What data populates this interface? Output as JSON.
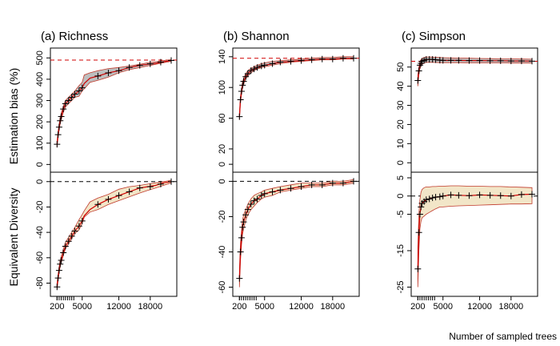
{
  "chart_data": {
    "type": "line",
    "ylabel_top": "Estimation bias (%)",
    "ylabel_bottom": "Equivalent Diversity",
    "xlabel": "Number of sampled trees",
    "x_ticks": [
      200,
      5000,
      12000,
      18000
    ],
    "colors": {
      "band_top": "#bebebe",
      "band_bottom": "#f2e6c8",
      "band_edge": "#c0392b",
      "mean_line": "#d00000",
      "reference_line": "#d00000",
      "zero_line": "#000000",
      "markers": "#000000"
    },
    "panels": [
      {
        "title": "(a) Richness",
        "xlim": [
          0,
          22000
        ],
        "top": {
          "ylim": [
            -10,
            520
          ],
          "ticks": [
            0,
            100,
            200,
            300,
            400,
            500
          ],
          "reference": 490,
          "x": [
            200,
            400,
            600,
            800,
            1000,
            1400,
            1800,
            2400,
            3000,
            3600,
            4400,
            5000,
            5400,
            6500,
            8000,
            10000,
            12000,
            14000,
            16000,
            17500,
            19000,
            20500,
            22000
          ],
          "mean": [
            95,
            140,
            175,
            205,
            225,
            260,
            285,
            300,
            315,
            330,
            345,
            360,
            380,
            405,
            415,
            430,
            440,
            455,
            465,
            470,
            475,
            482,
            488
          ],
          "lower": [
            80,
            125,
            160,
            190,
            210,
            245,
            270,
            285,
            300,
            315,
            320,
            345,
            355,
            385,
            395,
            410,
            430,
            445,
            455,
            462,
            470,
            477,
            484
          ],
          "upper": [
            110,
            155,
            190,
            220,
            240,
            275,
            300,
            315,
            330,
            345,
            370,
            385,
            420,
            430,
            440,
            450,
            455,
            462,
            470,
            477,
            482,
            488,
            492
          ],
          "markers_x": [
            200,
            400,
            600,
            800,
            1000,
            1400,
            1800,
            2400,
            3000,
            3600,
            4400,
            5000,
            8000,
            10000,
            12000,
            14000,
            16000,
            18000,
            20000,
            22000
          ],
          "markers_y": [
            95,
            140,
            175,
            205,
            225,
            260,
            285,
            300,
            315,
            330,
            345,
            360,
            415,
            430,
            440,
            455,
            465,
            472,
            480,
            488
          ]
        },
        "bottom": {
          "ylim": [
            -86,
            3
          ],
          "ticks": [
            -80,
            -60,
            -40,
            -20,
            0
          ],
          "reference": 0,
          "x": [
            200,
            400,
            600,
            800,
            1000,
            1400,
            1800,
            2400,
            3000,
            3600,
            4400,
            5000,
            5400,
            6500,
            8000,
            10000,
            12000,
            14000,
            16000,
            17500,
            19000,
            20500,
            22000
          ],
          "mean": [
            -83,
            -76,
            -70,
            -65,
            -62,
            -56,
            -51,
            -47,
            -43,
            -39,
            -35,
            -31,
            -27,
            -22,
            -18,
            -14,
            -11,
            -8,
            -5,
            -4,
            -3,
            -1,
            0
          ],
          "lower": [
            -85,
            -78,
            -72,
            -67,
            -64,
            -58,
            -53,
            -49,
            -45,
            -41,
            -38,
            -33,
            -28,
            -24,
            -22,
            -18,
            -15,
            -12,
            -9,
            -7,
            -5,
            -3,
            -1
          ],
          "upper": [
            -80,
            -73,
            -67,
            -62,
            -59,
            -53,
            -48,
            -44,
            -40,
            -36,
            -30,
            -26,
            -23,
            -16,
            -13,
            -10,
            -6,
            -4,
            -3,
            -2,
            -1,
            0,
            1
          ],
          "markers_x": [
            200,
            400,
            600,
            800,
            1000,
            1400,
            1800,
            2400,
            3000,
            3600,
            4400,
            5000,
            8000,
            10000,
            12000,
            14000,
            16000,
            18000,
            20000,
            22000
          ],
          "markers_y": [
            -83,
            -76,
            -70,
            -65,
            -62,
            -56,
            -51,
            -47,
            -43,
            -39,
            -35,
            -31,
            -18,
            -14,
            -11,
            -8,
            -5,
            -4,
            -2,
            0
          ]
        }
      },
      {
        "title": "(b) Shannon",
        "xlim": [
          0,
          22000
        ],
        "top": {
          "ylim": [
            -3,
            144
          ],
          "ticks": [
            0,
            20,
            60,
            100,
            140
          ],
          "reference": 138,
          "x": [
            200,
            400,
            600,
            800,
            1000,
            1400,
            1800,
            2400,
            3000,
            3600,
            4400,
            5000,
            6500,
            8000,
            10000,
            12000,
            14000,
            16000,
            18000,
            20000,
            22000
          ],
          "mean": [
            62,
            84,
            95,
            103,
            108,
            114,
            118,
            122,
            124,
            126,
            128,
            129,
            131,
            133,
            134,
            135,
            136,
            137,
            137,
            138,
            138
          ],
          "lower": [
            58,
            80,
            91,
            99,
            104,
            111,
            115,
            119,
            122,
            124,
            126,
            127,
            129,
            131,
            133,
            134,
            135,
            136,
            136,
            137,
            137
          ],
          "upper": [
            68,
            88,
            99,
            107,
            112,
            118,
            122,
            125,
            127,
            129,
            131,
            132,
            134,
            135,
            136,
            137,
            138,
            139,
            139,
            140,
            140
          ],
          "markers_x": [
            200,
            400,
            600,
            800,
            1000,
            1400,
            1800,
            2400,
            3000,
            3600,
            4400,
            5000,
            6500,
            8000,
            10000,
            12000,
            14000,
            16000,
            18000,
            20000,
            22000
          ],
          "markers_y": [
            62,
            84,
            95,
            103,
            108,
            114,
            118,
            122,
            124,
            126,
            128,
            129,
            131,
            133,
            134,
            135,
            136,
            137,
            137,
            138,
            138
          ]
        },
        "bottom": {
          "ylim": [
            -62,
            2
          ],
          "ticks": [
            -60,
            -40,
            -20,
            0
          ],
          "reference": 0,
          "x": [
            200,
            400,
            600,
            800,
            1000,
            1400,
            1800,
            2400,
            3000,
            3600,
            4400,
            5000,
            6500,
            8000,
            10000,
            12000,
            14000,
            16000,
            18000,
            20000,
            22000
          ],
          "mean": [
            -55,
            -40,
            -32,
            -26,
            -23,
            -19,
            -16,
            -13,
            -11,
            -10,
            -8,
            -7,
            -6,
            -5,
            -4,
            -3,
            -2,
            -2,
            -1,
            -1,
            0
          ],
          "lower": [
            -60,
            -45,
            -36,
            -30,
            -27,
            -22,
            -19,
            -16,
            -14,
            -12,
            -10,
            -9,
            -8,
            -6,
            -5,
            -4,
            -3,
            -3,
            -2,
            -2,
            -1
          ],
          "upper": [
            -50,
            -35,
            -28,
            -22,
            -19,
            -16,
            -13,
            -10,
            -8,
            -7,
            -6,
            -5,
            -4,
            -3,
            -2,
            -1,
            -1,
            -1,
            0,
            0,
            1
          ],
          "markers_x": [
            200,
            400,
            600,
            800,
            1000,
            1400,
            1800,
            2400,
            3000,
            3600,
            4400,
            5000,
            6500,
            8000,
            10000,
            12000,
            14000,
            16000,
            18000,
            20000,
            22000
          ],
          "markers_y": [
            -55,
            -40,
            -32,
            -26,
            -23,
            -19,
            -16,
            -13,
            -11,
            -10,
            -8,
            -7,
            -6,
            -5,
            -4,
            -3,
            -2,
            -2,
            -1,
            -1,
            0
          ]
        }
      },
      {
        "title": "(c) Simpson",
        "xlim": [
          0,
          22000
        ],
        "top": {
          "ylim": [
            -2,
            57
          ],
          "ticks": [
            0,
            10,
            20,
            30,
            40,
            50
          ],
          "reference": 53,
          "x": [
            200,
            400,
            600,
            800,
            1000,
            1400,
            1800,
            2400,
            3000,
            3600,
            4400,
            5000,
            6500,
            8000,
            10000,
            12000,
            14000,
            16000,
            18000,
            20000,
            22000
          ],
          "mean": [
            43,
            48,
            51,
            52,
            53,
            53.5,
            54,
            54,
            54,
            53.8,
            53.6,
            53.5,
            53.5,
            53.5,
            53.4,
            53.4,
            53.3,
            53.3,
            53.2,
            53.2,
            53.1
          ],
          "lower": [
            40,
            46,
            49,
            50.5,
            51.5,
            52,
            52.5,
            52.5,
            52.5,
            52.4,
            52.3,
            52.3,
            52.3,
            52.3,
            52.2,
            52.2,
            52.2,
            52.2,
            52.1,
            52.1,
            52.1
          ],
          "upper": [
            46,
            50,
            53,
            54,
            54.5,
            55,
            55.3,
            55.3,
            55.2,
            55.1,
            55,
            54.9,
            54.8,
            54.7,
            54.6,
            54.5,
            54.4,
            54.3,
            54.3,
            54.2,
            54.1
          ],
          "markers_x": [
            200,
            400,
            600,
            800,
            1000,
            1400,
            1800,
            2400,
            3000,
            3600,
            4400,
            5000,
            6500,
            8000,
            10000,
            12000,
            14000,
            16000,
            18000,
            20000,
            22000
          ],
          "markers_y": [
            43,
            48,
            51,
            52,
            53,
            53.5,
            54,
            54,
            54,
            53.8,
            53.6,
            53.5,
            53.5,
            53.5,
            53.4,
            53.4,
            53.3,
            53.3,
            53.2,
            53.2,
            53.1
          ]
        },
        "bottom": {
          "ylim": [
            -26,
            5
          ],
          "ticks": [
            -25,
            -15,
            -5,
            0,
            5
          ],
          "reference": 0,
          "x": [
            200,
            400,
            600,
            800,
            1000,
            1400,
            1800,
            2400,
            3000,
            3600,
            4400,
            5000,
            6500,
            8000,
            10000,
            12000,
            14000,
            16000,
            18000,
            20000,
            22000
          ],
          "mean": [
            -20,
            -10,
            -5,
            -3,
            -2,
            -1.5,
            -1,
            -0.8,
            -0.5,
            -0.3,
            -0.2,
            0,
            0.3,
            0.2,
            0.1,
            0.3,
            0.2,
            0.1,
            0,
            0.4,
            0.5
          ],
          "lower": [
            -25,
            -15,
            -9,
            -7,
            -6,
            -5.5,
            -5,
            -4.5,
            -4,
            -3.5,
            -3,
            -3,
            -2.8,
            -2.7,
            -2.6,
            -2.5,
            -2.4,
            -2.3,
            -2.2,
            -2.2,
            -2.1
          ],
          "upper": [
            -14,
            -5,
            -1,
            1,
            1.8,
            2.3,
            2.5,
            2.5,
            2.6,
            2.6,
            2.7,
            2.7,
            2.8,
            2.8,
            2.7,
            2.7,
            2.6,
            2.6,
            2.5,
            2.4,
            2.3
          ],
          "markers_x": [
            200,
            400,
            600,
            800,
            1000,
            1400,
            1800,
            2400,
            3000,
            3600,
            4400,
            5000,
            6500,
            8000,
            10000,
            12000,
            14000,
            16000,
            18000,
            20000,
            22000
          ],
          "markers_y": [
            -20,
            -10,
            -5,
            -3,
            -2,
            -1.5,
            -1,
            -0.8,
            -0.5,
            -0.3,
            -0.2,
            0,
            0.3,
            0.2,
            0.1,
            0.3,
            0.2,
            0.1,
            0,
            0.4,
            0.5
          ]
        }
      }
    ]
  }
}
